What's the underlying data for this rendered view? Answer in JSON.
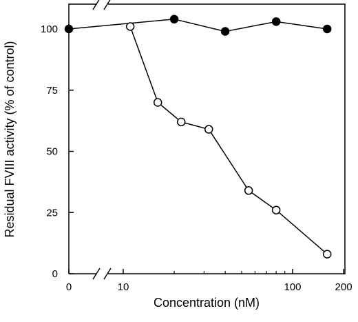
{
  "chart_data": {
    "type": "line",
    "xlabel": "Concentration (nM)",
    "ylabel": "Residual FVIII activity (% of control)",
    "x_scale": "log",
    "x_axis_break": true,
    "x_ticks": [
      {
        "value": 0,
        "label": "0"
      },
      {
        "value": 10,
        "label": "10"
      },
      {
        "value": 100,
        "label": "100"
      },
      {
        "value": 200,
        "label": "200"
      }
    ],
    "y_ticks": [
      0,
      25,
      50,
      75,
      100
    ],
    "ylim": [
      0,
      110
    ],
    "series": [
      {
        "marker": "filled-circle",
        "color": "#000000",
        "points": [
          {
            "x": 0,
            "y": 100
          },
          {
            "x": 20,
            "y": 104
          },
          {
            "x": 40,
            "y": 99
          },
          {
            "x": 80,
            "y": 103
          },
          {
            "x": 160,
            "y": 100
          }
        ]
      },
      {
        "marker": "open-circle",
        "color": "#000000",
        "points": [
          {
            "x": 11,
            "y": 101
          },
          {
            "x": 16,
            "y": 70
          },
          {
            "x": 22,
            "y": 62
          },
          {
            "x": 32,
            "y": 59
          },
          {
            "x": 55,
            "y": 34
          },
          {
            "x": 80,
            "y": 26
          },
          {
            "x": 160,
            "y": 8
          }
        ]
      }
    ]
  }
}
